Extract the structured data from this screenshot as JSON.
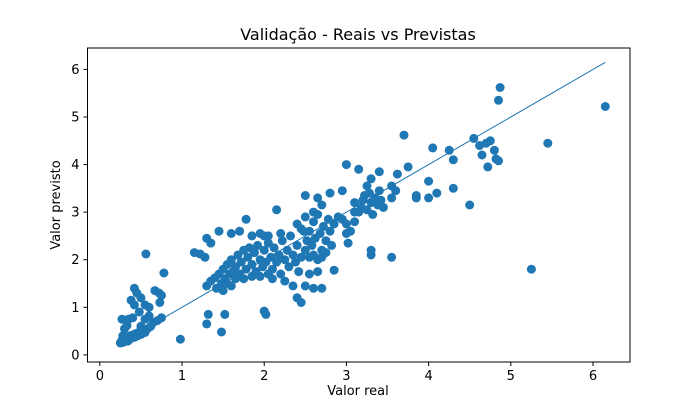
{
  "chart_data": {
    "type": "scatter",
    "title": "Validação - Reais vs Previstas",
    "xlabel": "Valor real",
    "ylabel": "Valor previsto",
    "xlim": [
      -0.15,
      6.45
    ],
    "ylim": [
      -0.15,
      6.45
    ],
    "xticks": [
      0,
      1,
      2,
      3,
      4,
      5,
      6
    ],
    "yticks": [
      0,
      1,
      2,
      3,
      4,
      5,
      6
    ],
    "grid": false,
    "marker_color": "#1f77b4",
    "line_color": "#1f77b4",
    "reference_line": {
      "x": [
        0.25,
        6.15
      ],
      "y": [
        0.25,
        6.15
      ]
    },
    "points": [
      [
        0.25,
        0.25
      ],
      [
        0.26,
        0.28
      ],
      [
        0.27,
        0.3
      ],
      [
        0.28,
        0.26
      ],
      [
        0.29,
        0.33
      ],
      [
        0.3,
        0.28
      ],
      [
        0.31,
        0.36
      ],
      [
        0.32,
        0.3
      ],
      [
        0.33,
        0.34
      ],
      [
        0.34,
        0.29
      ],
      [
        0.35,
        0.38
      ],
      [
        0.36,
        0.32
      ],
      [
        0.37,
        0.4
      ],
      [
        0.38,
        0.35
      ],
      [
        0.4,
        0.42
      ],
      [
        0.42,
        0.37
      ],
      [
        0.44,
        0.45
      ],
      [
        0.46,
        0.4
      ],
      [
        0.48,
        0.48
      ],
      [
        0.5,
        0.43
      ],
      [
        0.52,
        0.52
      ],
      [
        0.55,
        0.47
      ],
      [
        0.58,
        0.55
      ],
      [
        0.62,
        0.6
      ],
      [
        0.65,
        0.68
      ],
      [
        0.7,
        0.72
      ],
      [
        0.75,
        0.78
      ],
      [
        0.28,
        0.4
      ],
      [
        0.3,
        0.55
      ],
      [
        0.33,
        0.62
      ],
      [
        0.27,
        0.75
      ],
      [
        0.35,
        0.75
      ],
      [
        0.4,
        0.78
      ],
      [
        0.5,
        0.6
      ],
      [
        0.55,
        0.75
      ],
      [
        0.6,
        0.82
      ],
      [
        0.48,
        0.9
      ],
      [
        0.42,
        1.05
      ],
      [
        0.5,
        1.2
      ],
      [
        0.55,
        1.05
      ],
      [
        0.38,
        1.15
      ],
      [
        0.42,
        1.4
      ],
      [
        0.45,
        1.3
      ],
      [
        0.6,
        1.0
      ],
      [
        0.67,
        1.35
      ],
      [
        0.72,
        1.3
      ],
      [
        0.75,
        1.25
      ],
      [
        0.73,
        1.1
      ],
      [
        0.78,
        1.72
      ],
      [
        0.56,
        2.12
      ],
      [
        0.98,
        0.33
      ],
      [
        1.48,
        0.48
      ],
      [
        1.3,
        0.65
      ],
      [
        1.32,
        0.85
      ],
      [
        1.52,
        0.85
      ],
      [
        1.15,
        2.15
      ],
      [
        1.22,
        2.12
      ],
      [
        1.28,
        2.05
      ],
      [
        1.3,
        2.45
      ],
      [
        1.35,
        2.35
      ],
      [
        1.45,
        2.6
      ],
      [
        1.6,
        2.55
      ],
      [
        1.7,
        2.6
      ],
      [
        1.78,
        2.85
      ],
      [
        1.85,
        2.5
      ],
      [
        1.95,
        2.55
      ],
      [
        2.05,
        2.5
      ],
      [
        2.15,
        3.05
      ],
      [
        1.3,
        1.45
      ],
      [
        1.35,
        1.55
      ],
      [
        1.4,
        1.62
      ],
      [
        1.42,
        1.4
      ],
      [
        1.45,
        1.7
      ],
      [
        1.48,
        1.5
      ],
      [
        1.5,
        1.8
      ],
      [
        1.52,
        1.6
      ],
      [
        1.55,
        1.9
      ],
      [
        1.58,
        1.7
      ],
      [
        1.6,
        2.0
      ],
      [
        1.62,
        1.75
      ],
      [
        1.65,
        1.85
      ],
      [
        1.68,
        2.1
      ],
      [
        1.7,
        1.7
      ],
      [
        1.72,
        1.95
      ],
      [
        1.75,
        2.2
      ],
      [
        1.78,
        1.8
      ],
      [
        1.8,
        2.05
      ],
      [
        1.82,
        2.25
      ],
      [
        1.85,
        1.9
      ],
      [
        1.88,
        2.15
      ],
      [
        1.9,
        1.75
      ],
      [
        1.92,
        2.3
      ],
      [
        1.95,
        2.0
      ],
      [
        1.98,
        1.85
      ],
      [
        2.0,
        2.2
      ],
      [
        2.02,
        1.95
      ],
      [
        2.05,
        2.35
      ],
      [
        2.08,
        2.05
      ],
      [
        2.1,
        1.8
      ],
      [
        2.12,
        2.25
      ],
      [
        2.15,
        1.95
      ],
      [
        2.18,
        2.1
      ],
      [
        2.2,
        1.7
      ],
      [
        2.22,
        2.4
      ],
      [
        2.25,
        2.0
      ],
      [
        2.28,
        2.2
      ],
      [
        2.3,
        1.85
      ],
      [
        2.32,
        2.5
      ],
      [
        2.35,
        2.1
      ],
      [
        2.38,
        1.95
      ],
      [
        2.4,
        2.3
      ],
      [
        2.42,
        1.75
      ],
      [
        2.45,
        2.05
      ],
      [
        2.48,
        2.6
      ],
      [
        1.55,
        1.5
      ],
      [
        1.65,
        1.6
      ],
      [
        1.75,
        1.6
      ],
      [
        1.85,
        1.65
      ],
      [
        1.95,
        1.65
      ],
      [
        2.05,
        1.7
      ],
      [
        1.5,
        1.35
      ],
      [
        1.6,
        1.45
      ],
      [
        2.1,
        1.6
      ],
      [
        2.25,
        1.55
      ],
      [
        2.35,
        1.45
      ],
      [
        2.5,
        1.45
      ],
      [
        2.6,
        1.4
      ],
      [
        2.7,
        1.4
      ],
      [
        2.4,
        1.2
      ],
      [
        2.45,
        1.1
      ],
      [
        2.0,
        0.92
      ],
      [
        2.02,
        0.85
      ],
      [
        2.55,
        1.7
      ],
      [
        2.65,
        1.75
      ],
      [
        2.85,
        1.78
      ],
      [
        2.2,
        2.55
      ],
      [
        2.0,
        2.5
      ],
      [
        2.5,
        2.9
      ],
      [
        2.45,
        2.65
      ],
      [
        2.5,
        2.2
      ],
      [
        2.52,
        2.4
      ],
      [
        2.55,
        2.6
      ],
      [
        2.58,
        2.3
      ],
      [
        2.6,
        2.8
      ],
      [
        2.62,
        2.45
      ],
      [
        2.65,
        2.95
      ],
      [
        2.68,
        2.55
      ],
      [
        2.7,
        2.2
      ],
      [
        2.72,
        2.7
      ],
      [
        2.75,
        2.4
      ],
      [
        2.78,
        2.85
      ],
      [
        2.8,
        2.6
      ],
      [
        2.82,
        2.3
      ],
      [
        2.85,
        2.75
      ],
      [
        2.6,
        2.1
      ],
      [
        2.65,
        2.0
      ],
      [
        2.7,
        2.05
      ],
      [
        2.75,
        2.15
      ],
      [
        2.55,
        2.05
      ],
      [
        2.6,
        3.0
      ],
      [
        2.7,
        3.15
      ],
      [
        2.8,
        3.4
      ],
      [
        2.65,
        3.3
      ],
      [
        2.5,
        3.35
      ],
      [
        2.4,
        2.75
      ],
      [
        2.9,
        2.9
      ],
      [
        2.95,
        2.85
      ],
      [
        3.0,
        2.55
      ],
      [
        3.0,
        2.75
      ],
      [
        3.02,
        2.35
      ],
      [
        3.05,
        2.6
      ],
      [
        3.1,
        3.0
      ],
      [
        3.1,
        2.8
      ],
      [
        2.95,
        3.45
      ],
      [
        3.0,
        4.0
      ],
      [
        3.1,
        3.2
      ],
      [
        3.15,
        3.0
      ],
      [
        3.18,
        3.1
      ],
      [
        3.2,
        3.25
      ],
      [
        3.22,
        3.35
      ],
      [
        3.25,
        3.05
      ],
      [
        3.28,
        3.4
      ],
      [
        3.3,
        3.2
      ],
      [
        3.32,
        2.95
      ],
      [
        3.35,
        3.3
      ],
      [
        3.38,
        3.15
      ],
      [
        3.4,
        3.45
      ],
      [
        3.42,
        3.25
      ],
      [
        3.45,
        3.1
      ],
      [
        3.25,
        3.55
      ],
      [
        3.3,
        3.7
      ],
      [
        3.15,
        3.9
      ],
      [
        3.4,
        3.85
      ],
      [
        3.55,
        3.55
      ],
      [
        3.55,
        3.3
      ],
      [
        3.6,
        3.45
      ],
      [
        3.3,
        2.2
      ],
      [
        3.3,
        2.1
      ],
      [
        3.55,
        2.05
      ],
      [
        3.62,
        3.8
      ],
      [
        3.7,
        4.62
      ],
      [
        3.75,
        3.95
      ],
      [
        3.85,
        3.3
      ],
      [
        3.85,
        3.35
      ],
      [
        4.0,
        3.3
      ],
      [
        4.0,
        3.65
      ],
      [
        4.05,
        4.35
      ],
      [
        4.1,
        3.4
      ],
      [
        4.25,
        4.3
      ],
      [
        4.3,
        3.5
      ],
      [
        4.3,
        4.1
      ],
      [
        4.5,
        3.15
      ],
      [
        4.55,
        4.55
      ],
      [
        4.62,
        4.4
      ],
      [
        4.65,
        4.2
      ],
      [
        4.7,
        4.45
      ],
      [
        4.72,
        3.95
      ],
      [
        4.75,
        4.5
      ],
      [
        4.8,
        4.3
      ],
      [
        4.82,
        4.12
      ],
      [
        4.85,
        4.08
      ],
      [
        4.85,
        5.35
      ],
      [
        4.87,
        5.62
      ],
      [
        5.25,
        1.8
      ],
      [
        5.45,
        4.45
      ],
      [
        6.15,
        5.22
      ]
    ]
  }
}
